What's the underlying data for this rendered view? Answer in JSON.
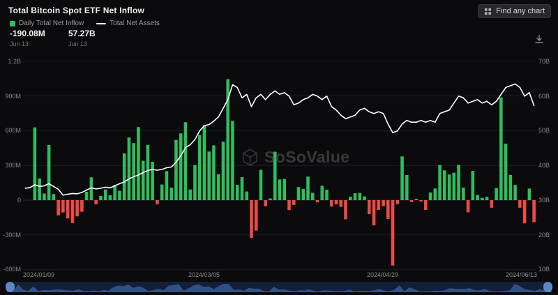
{
  "header": {
    "title": "Total Bitcoin Spot ETF Net Inflow",
    "find_chart_button": "Find any chart"
  },
  "legend": {
    "series1": {
      "label": "Daily Total Net Inflow",
      "value": "-190.08M",
      "date": "Jun 13",
      "color": "#2fbe5f"
    },
    "series2": {
      "label": "Total Net Assets",
      "value": "57.27B",
      "date": "Jun 13",
      "color": "#ffffff"
    }
  },
  "watermark": "SoSoValue",
  "chart_data": {
    "type": "bar+line",
    "title": "Total Bitcoin Spot ETF Net Inflow",
    "grid": true,
    "legend_position": "top-left",
    "left_axis": {
      "unit": "USD (M)",
      "ticks": [
        "1.2B",
        "900M",
        "600M",
        "300M",
        "0",
        "-300M",
        "-600M"
      ],
      "tick_values": [
        1200,
        900,
        600,
        300,
        0,
        -300,
        -600
      ],
      "min": -600,
      "max": 1200
    },
    "right_axis": {
      "unit": "USD (B)",
      "ticks": [
        "70B",
        "60B",
        "50B",
        "40B",
        "30B",
        "20B",
        "10B"
      ],
      "tick_values": [
        70,
        60,
        50,
        40,
        30,
        20,
        10
      ],
      "min": 10,
      "max": 70
    },
    "x_axis_labels": [
      "2024/01/09",
      "2024/03/05",
      "2024/04/29",
      "2024/06/13"
    ],
    "dates": [
      "2024-01-09",
      "2024-01-10",
      "2024-01-11",
      "2024-01-12",
      "2024-01-16",
      "2024-01-17",
      "2024-01-18",
      "2024-01-19",
      "2024-01-22",
      "2024-01-23",
      "2024-01-24",
      "2024-01-25",
      "2024-01-26",
      "2024-01-29",
      "2024-01-30",
      "2024-01-31",
      "2024-02-01",
      "2024-02-02",
      "2024-02-05",
      "2024-02-06",
      "2024-02-07",
      "2024-02-08",
      "2024-02-09",
      "2024-02-12",
      "2024-02-13",
      "2024-02-14",
      "2024-02-15",
      "2024-02-16",
      "2024-02-20",
      "2024-02-21",
      "2024-02-22",
      "2024-02-23",
      "2024-02-26",
      "2024-02-27",
      "2024-02-28",
      "2024-02-29",
      "2024-03-01",
      "2024-03-04",
      "2024-03-05",
      "2024-03-06",
      "2024-03-07",
      "2024-03-08",
      "2024-03-11",
      "2024-03-12",
      "2024-03-13",
      "2024-03-14",
      "2024-03-15",
      "2024-03-18",
      "2024-03-19",
      "2024-03-20",
      "2024-03-21",
      "2024-03-22",
      "2024-03-25",
      "2024-03-26",
      "2024-03-27",
      "2024-03-28",
      "2024-04-01",
      "2024-04-02",
      "2024-04-03",
      "2024-04-04",
      "2024-04-05",
      "2024-04-08",
      "2024-04-09",
      "2024-04-10",
      "2024-04-11",
      "2024-04-12",
      "2024-04-15",
      "2024-04-16",
      "2024-04-17",
      "2024-04-18",
      "2024-04-19",
      "2024-04-22",
      "2024-04-23",
      "2024-04-24",
      "2024-04-25",
      "2024-04-26",
      "2024-04-29",
      "2024-04-30",
      "2024-05-01",
      "2024-05-02",
      "2024-05-03",
      "2024-05-06",
      "2024-05-07",
      "2024-05-08",
      "2024-05-09",
      "2024-05-10",
      "2024-05-13",
      "2024-05-14",
      "2024-05-15",
      "2024-05-16",
      "2024-05-17",
      "2024-05-20",
      "2024-05-21",
      "2024-05-22",
      "2024-05-23",
      "2024-05-24",
      "2024-05-28",
      "2024-05-29",
      "2024-05-30",
      "2024-05-31",
      "2024-06-03",
      "2024-06-04",
      "2024-06-05",
      "2024-06-06",
      "2024-06-07",
      "2024-06-10",
      "2024-06-11",
      "2024-06-12",
      "2024-06-13"
    ],
    "series": [
      {
        "name": "Daily Total Net Inflow",
        "type": "bar",
        "unit": "M USD",
        "color_positive": "#2fbe5f",
        "color_negative": "#f04a45",
        "latest_value": "-190.08M",
        "latest_date": "Jun 13",
        "values": [
          0,
          0,
          628,
          187,
          57,
          475,
          53,
          -131,
          -106,
          -158,
          -198,
          -140,
          -100,
          72,
          197,
          -36,
          37,
          92,
          42,
          131,
          81,
          403,
          541,
          493,
          631,
          340,
          477,
          331,
          -36,
          135,
          251,
          108,
          520,
          576,
          673,
          92,
          303,
          562,
          648,
          420,
          473,
          223,
          505,
          1045,
          684,
          132,
          199,
          75,
          -326,
          -262,
          261,
          -52,
          15,
          418,
          179,
          183,
          -86,
          -41,
          113,
          97,
          203,
          63,
          -19,
          124,
          91,
          -55,
          -36,
          -58,
          -165,
          30,
          60,
          62,
          32,
          -121,
          -218,
          -84,
          -52,
          -162,
          -564,
          -34,
          378,
          217,
          -16,
          11,
          -11,
          -85,
          66,
          101,
          303,
          257,
          221,
          237,
          305,
          108,
          -105,
          252,
          45,
          20,
          28,
          -65,
          105,
          887,
          488,
          218,
          131,
          -65,
          -200,
          100,
          -190.08
        ]
      },
      {
        "name": "Total Net Assets",
        "type": "line",
        "unit": "B USD",
        "color": "#ffffff",
        "latest_value": "57.27B",
        "latest_date": "Jun 13",
        "values": [
          33.5,
          33.7,
          34.5,
          34.0,
          34.2,
          34.8,
          34.0,
          33.2,
          31.5,
          31.8,
          32.0,
          31.9,
          32.3,
          33.0,
          33.6,
          33.3,
          33.5,
          33.8,
          33.6,
          34.2,
          34.8,
          35.3,
          36.2,
          36.8,
          37.3,
          38.0,
          38.6,
          38.9,
          38.7,
          38.9,
          39.4,
          39.6,
          41.0,
          42.8,
          45.2,
          46.0,
          47.5,
          50.0,
          51.5,
          51.8,
          52.8,
          54.0,
          56.5,
          59.0,
          63.3,
          62.5,
          59.5,
          60.5,
          57.0,
          59.5,
          60.5,
          59.0,
          60.5,
          61.5,
          60.5,
          61.0,
          60.0,
          57.5,
          58.0,
          59.0,
          59.5,
          60.5,
          60.0,
          59.0,
          60.0,
          57.0,
          56.0,
          54.5,
          53.5,
          54.0,
          54.5,
          56.0,
          56.5,
          55.5,
          55.0,
          55.5,
          55.0,
          52.0,
          49.5,
          50.0,
          52.0,
          53.0,
          52.5,
          52.5,
          53.0,
          52.5,
          53.0,
          52.5,
          55.0,
          55.5,
          56.0,
          58.0,
          60.0,
          59.5,
          58.0,
          58.5,
          59.0,
          58.0,
          58.5,
          57.5,
          58.5,
          60.5,
          62.5,
          63.0,
          63.5,
          62.5,
          60.0,
          61.0,
          57.27
        ]
      }
    ],
    "navigator": {
      "present": true,
      "color_track": "#131f38",
      "color_area": "#33568f",
      "color_handle": "#5d86c5"
    }
  }
}
